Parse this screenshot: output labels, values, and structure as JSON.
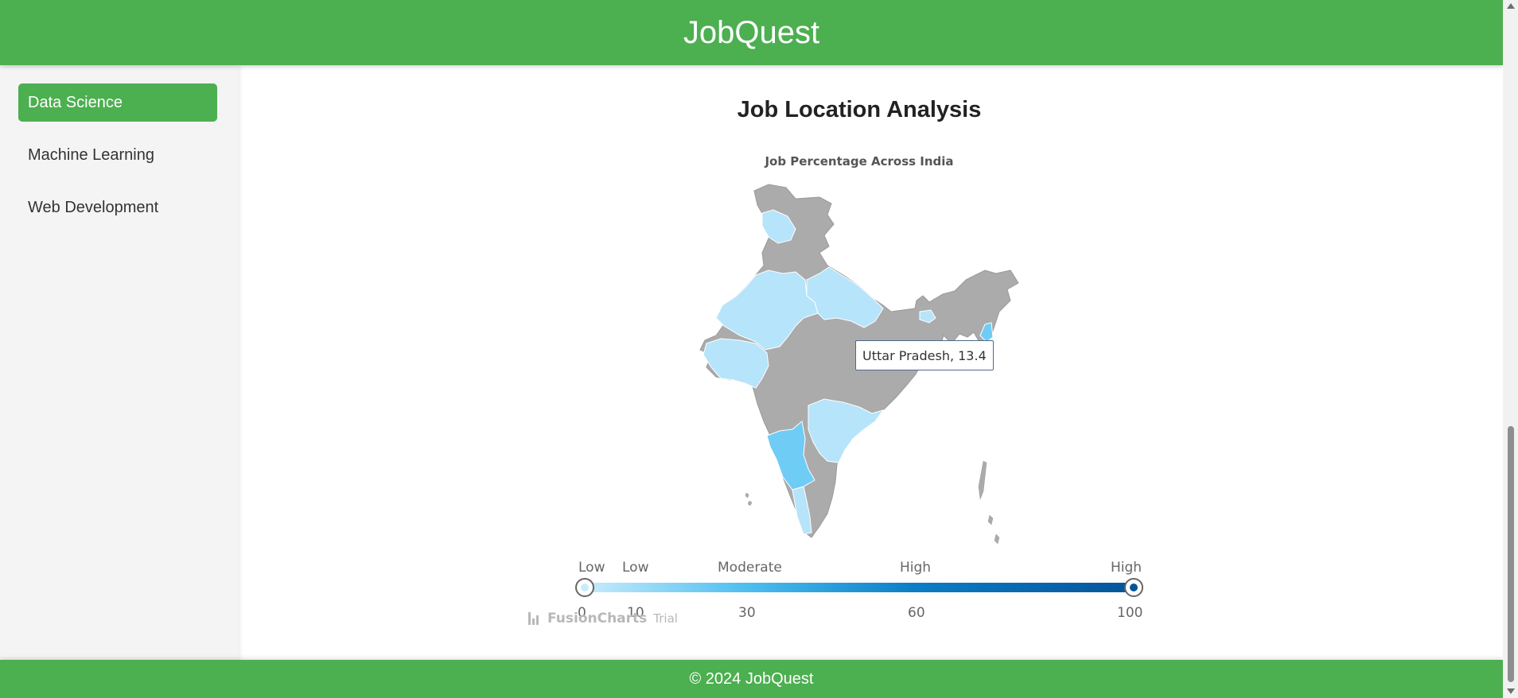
{
  "app": {
    "title": "JobQuest"
  },
  "sidebar": {
    "items": [
      {
        "label": "Data Science",
        "active": true
      },
      {
        "label": "Machine Learning",
        "active": false
      },
      {
        "label": "Web Development",
        "active": false
      }
    ]
  },
  "main": {
    "heading": "Job Location Analysis",
    "chart_title": "Job Percentage Across India"
  },
  "tooltip": {
    "text": "Uttar Pradesh, 13.4"
  },
  "legend": {
    "labels": [
      "Low",
      "Low",
      "Moderate",
      "High",
      "High"
    ],
    "ticks": [
      "0",
      "10",
      "30",
      "60",
      "100"
    ],
    "gradient": [
      "#c7ecfb",
      "#4bbdf0",
      "#0b7dc6",
      "#05549a"
    ]
  },
  "colors": {
    "accent": "#4caf50",
    "no_data": "#ababab",
    "low": "#b6e4fa",
    "mid": "#6fccf5"
  },
  "watermark": {
    "brand": "FusionCharts",
    "trial": "Trial"
  },
  "footer": {
    "text": "© 2024 JobQuest"
  },
  "chart_data": {
    "type": "map",
    "title": "Job Percentage Across India",
    "hovered": {
      "region": "Uttar Pradesh",
      "value": 13.4
    },
    "color_range": {
      "min": 0,
      "max": 100,
      "stops": [
        0,
        10,
        30,
        60,
        100
      ]
    }
  }
}
